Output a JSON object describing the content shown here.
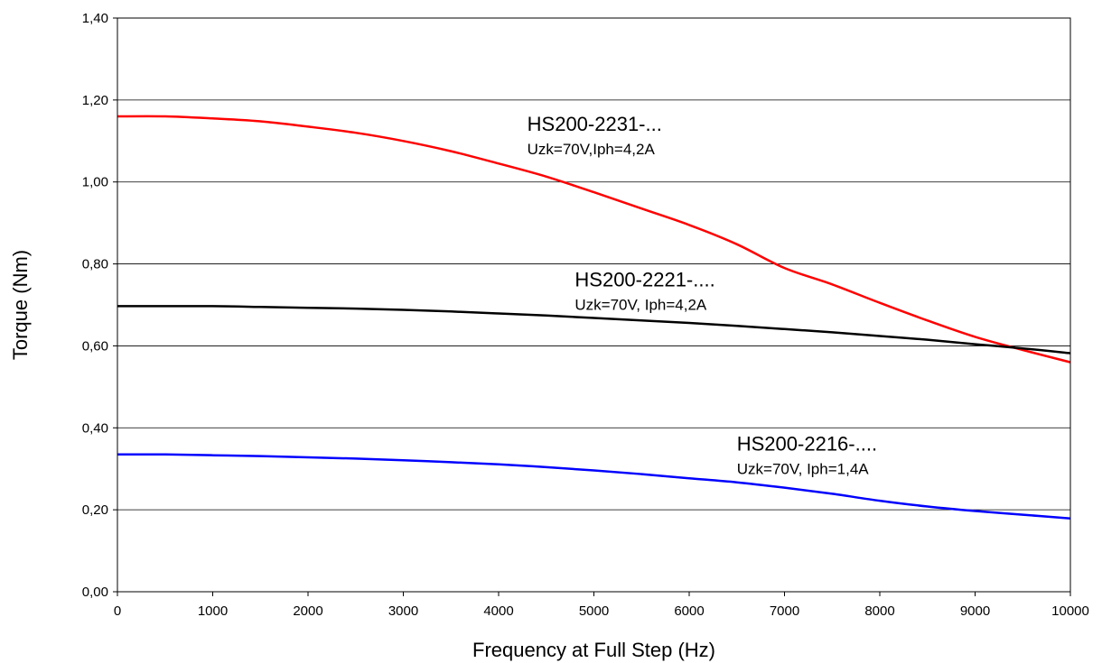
{
  "chart_data": {
    "type": "line",
    "title": "",
    "xlabel": "Frequency at Full Step (Hz)",
    "ylabel": "Torque (Nm)",
    "xlim": [
      0,
      10000
    ],
    "ylim": [
      0,
      1.4
    ],
    "x_ticks": [
      0,
      1000,
      2000,
      3000,
      4000,
      5000,
      6000,
      7000,
      8000,
      9000,
      10000
    ],
    "x_tick_labels": [
      "0",
      "1000",
      "2000",
      "3000",
      "4000",
      "5000",
      "6000",
      "7000",
      "8000",
      "9000",
      "10000"
    ],
    "y_ticks": [
      0,
      0.2,
      0.4,
      0.6,
      0.8,
      1.0,
      1.2,
      1.4
    ],
    "y_tick_labels": [
      "0,00",
      "0,20",
      "0,40",
      "0,60",
      "0,80",
      "1,00",
      "1,20",
      "1,40"
    ],
    "grid": "horizontal",
    "legend": "none",
    "series": [
      {
        "color": "#ff0000",
        "x": [
          0,
          500,
          1000,
          1500,
          2000,
          2500,
          3000,
          3500,
          4000,
          4500,
          5000,
          5500,
          6000,
          6500,
          7000,
          7500,
          8000,
          8500,
          9000,
          9500,
          10000
        ],
        "values": [
          1.16,
          1.16,
          1.155,
          1.148,
          1.135,
          1.12,
          1.1,
          1.075,
          1.045,
          1.013,
          0.975,
          0.935,
          0.895,
          0.848,
          0.79,
          0.75,
          0.705,
          0.662,
          0.622,
          0.59,
          0.56
        ]
      },
      {
        "color": "#000000",
        "x": [
          0,
          1000,
          1500,
          2000,
          2500,
          3000,
          3500,
          4000,
          4500,
          5000,
          5500,
          6000,
          6500,
          7000,
          7500,
          8000,
          8500,
          9000,
          9500,
          10000
        ],
        "values": [
          0.697,
          0.697,
          0.695,
          0.693,
          0.691,
          0.688,
          0.684,
          0.679,
          0.674,
          0.668,
          0.662,
          0.656,
          0.649,
          0.641,
          0.633,
          0.624,
          0.615,
          0.604,
          0.594,
          0.582
        ]
      },
      {
        "color": "#0000ff",
        "x": [
          0,
          500,
          1000,
          1500,
          2000,
          2500,
          3000,
          3500,
          4000,
          4500,
          5000,
          5500,
          6000,
          6500,
          7000,
          7500,
          8000,
          8500,
          9000,
          9500,
          10000
        ],
        "values": [
          0.335,
          0.335,
          0.333,
          0.331,
          0.328,
          0.325,
          0.321,
          0.316,
          0.311,
          0.304,
          0.296,
          0.287,
          0.277,
          0.267,
          0.254,
          0.239,
          0.222,
          0.208,
          0.197,
          0.188,
          0.179
        ]
      }
    ],
    "annotations": [
      {
        "title": "HS200-2231-...",
        "subtitle": "Uzk=70V,Iph=4,2A",
        "x": 4300,
        "y": 1.125
      },
      {
        "title": "HS200-2221-....",
        "subtitle": "Uzk=70V, Iph=4,2A",
        "x": 4800,
        "y": 0.745
      },
      {
        "title": "HS200-2216-....",
        "subtitle": "Uzk=70V, Iph=1,4A",
        "x": 6500,
        "y": 0.345
      }
    ]
  }
}
